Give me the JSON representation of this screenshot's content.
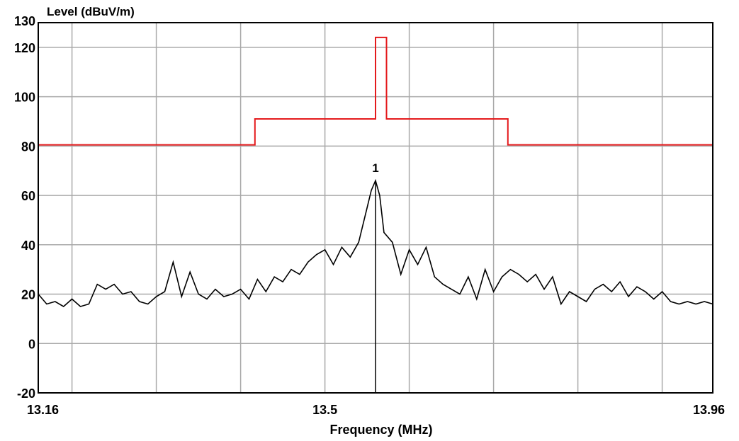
{
  "chart_data": {
    "type": "line",
    "title": "",
    "ylabel": "Level (dBuV/m)",
    "xlabel": "Frequency (MHz)",
    "xlim": [
      13.16,
      13.96
    ],
    "ylim": [
      -20,
      130
    ],
    "x_tick_labels": [
      {
        "value": 13.16,
        "label": "13.16"
      },
      {
        "value": 13.5,
        "label": "13.5"
      },
      {
        "value": 13.96,
        "label": "13.96"
      }
    ],
    "y_tick_labels": [
      {
        "value": -20,
        "label": "-20"
      },
      {
        "value": 0,
        "label": "0"
      },
      {
        "value": 20,
        "label": "20"
      },
      {
        "value": 40,
        "label": "40"
      },
      {
        "value": 60,
        "label": "60"
      },
      {
        "value": 80,
        "label": "80"
      },
      {
        "value": 100,
        "label": "100"
      },
      {
        "value": 120,
        "label": "120"
      },
      {
        "value": 130,
        "label": "130"
      }
    ],
    "grid": true,
    "grid_x_values": [
      13.2,
      13.3,
      13.4,
      13.5,
      13.6,
      13.7,
      13.8,
      13.9
    ],
    "grid_y_values": [
      0,
      20,
      40,
      60,
      80,
      100,
      120
    ],
    "series": [
      {
        "role": "limit",
        "color": "#e41a1c",
        "x": [
          13.16,
          13.417,
          13.417,
          13.56,
          13.56,
          13.573,
          13.573,
          13.717,
          13.717,
          13.96
        ],
        "y": [
          80.5,
          80.5,
          91,
          91,
          124,
          124,
          91,
          91,
          80.5,
          80.5
        ]
      },
      {
        "role": "measurement",
        "color": "#000000",
        "x": [
          13.16,
          13.17,
          13.18,
          13.19,
          13.2,
          13.21,
          13.22,
          13.23,
          13.24,
          13.25,
          13.26,
          13.27,
          13.28,
          13.29,
          13.3,
          13.31,
          13.32,
          13.33,
          13.34,
          13.35,
          13.36,
          13.37,
          13.38,
          13.39,
          13.4,
          13.41,
          13.42,
          13.43,
          13.44,
          13.45,
          13.46,
          13.47,
          13.48,
          13.49,
          13.5,
          13.51,
          13.52,
          13.53,
          13.54,
          13.55,
          13.555,
          13.56,
          13.565,
          13.57,
          13.58,
          13.59,
          13.6,
          13.61,
          13.62,
          13.63,
          13.64,
          13.65,
          13.66,
          13.67,
          13.68,
          13.69,
          13.7,
          13.71,
          13.72,
          13.73,
          13.74,
          13.75,
          13.76,
          13.77,
          13.78,
          13.79,
          13.8,
          13.81,
          13.82,
          13.83,
          13.84,
          13.85,
          13.86,
          13.87,
          13.88,
          13.89,
          13.9,
          13.91,
          13.92,
          13.93,
          13.94,
          13.95,
          13.96
        ],
        "y": [
          20,
          16,
          17,
          15,
          18,
          15,
          16,
          24,
          22,
          24,
          20,
          21,
          17,
          16,
          19,
          21,
          33,
          19,
          29,
          20,
          18,
          22,
          19,
          20,
          22,
          18,
          26,
          21,
          27,
          25,
          30,
          28,
          33,
          36,
          38,
          32,
          39,
          35,
          41,
          55,
          62,
          66,
          60,
          45,
          41,
          28,
          38,
          32,
          39,
          27,
          24,
          22,
          20,
          27,
          18,
          30,
          21,
          27,
          30,
          28,
          25,
          28,
          22,
          27,
          16,
          21,
          19,
          17,
          22,
          24,
          21,
          25,
          19,
          23,
          21,
          18,
          21,
          17,
          16,
          17,
          16,
          17,
          16
        ]
      }
    ],
    "markers": [
      {
        "label": "1",
        "x": 13.56,
        "y": 66
      }
    ]
  }
}
